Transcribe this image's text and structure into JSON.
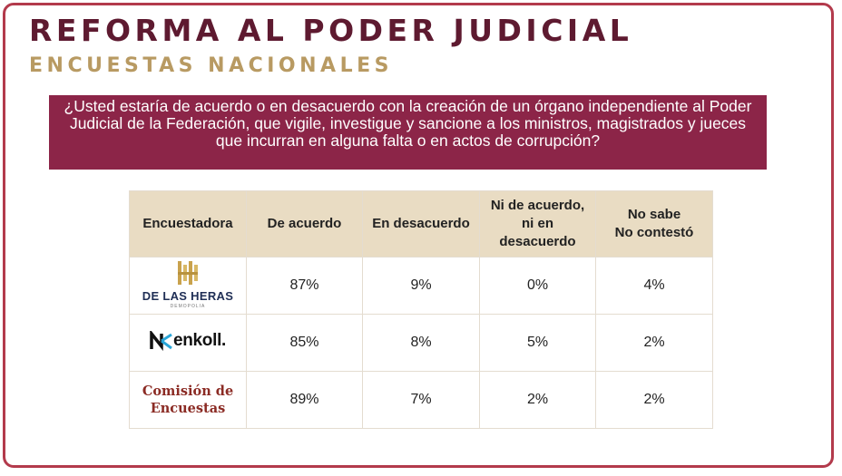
{
  "header": {
    "title": "REFORMA AL PODER JUDICIAL",
    "subtitle": "ENCUESTAS NACIONALES"
  },
  "question": "¿Usted estaría de acuerdo o en desacuerdo con la creación de un órgano independiente al Poder Judicial de la Federación, que vigile, investigue y sancione a los ministros, magistrados y jueces que incurran en alguna falta o en actos de corrupción?",
  "table": {
    "headers": {
      "pollster": "Encuestadora",
      "agree": "De acuerdo",
      "disagree": "En desacuerdo",
      "neither_line1": "Ni de acuerdo,",
      "neither_line2": "ni en",
      "neither_line3": "desacuerdo",
      "nosabe_line1": "No sabe",
      "nosabe_line2": "No contestó"
    },
    "rows": [
      {
        "pollster": "DE LAS HERAS",
        "pollster_sub": "DEMOPOLIA",
        "agree": "87%",
        "disagree": "9%",
        "neither": "0%",
        "nosabe": "4%"
      },
      {
        "pollster": "enkoll.",
        "agree": "85%",
        "disagree": "8%",
        "neither": "5%",
        "nosabe": "2%"
      },
      {
        "pollster_line1": "Comisión de",
        "pollster_line2": "Encuestas",
        "agree": "89%",
        "disagree": "7%",
        "neither": "2%",
        "nosabe": "2%"
      }
    ]
  },
  "colors": {
    "title": "#5e1a30",
    "subtitle": "#b89a62",
    "question_bg": "#8c2548",
    "header_bg": "#e9dcc3",
    "frame": "#b33a4c"
  },
  "icons": {
    "heras_logo": "columns-logo-icon",
    "enkoll_logo": "enkoll-n-logo-icon"
  }
}
